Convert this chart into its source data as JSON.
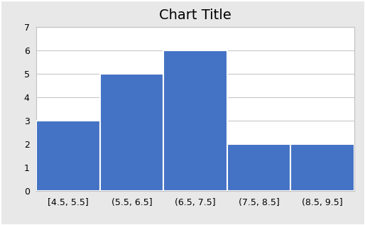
{
  "title": "Chart Title",
  "categories": [
    "[4.5, 5.5]",
    "(5.5, 6.5]",
    "(6.5, 7.5]",
    "(7.5, 8.5]",
    "(8.5, 9.5]"
  ],
  "values": [
    3,
    5,
    6,
    2,
    2
  ],
  "bar_color": "#4472C4",
  "bar_edge_color": "#ffffff",
  "bar_edge_width": 1.5,
  "ylim": [
    0,
    7
  ],
  "yticks": [
    0,
    1,
    2,
    3,
    4,
    5,
    6,
    7
  ],
  "title_fontsize": 14,
  "tick_fontsize": 9,
  "plot_bg_color": "#ffffff",
  "grid_color": "#c8c8c8",
  "outer_bg_color": "#e8e8e8",
  "frame_color": "#c0c0c0"
}
